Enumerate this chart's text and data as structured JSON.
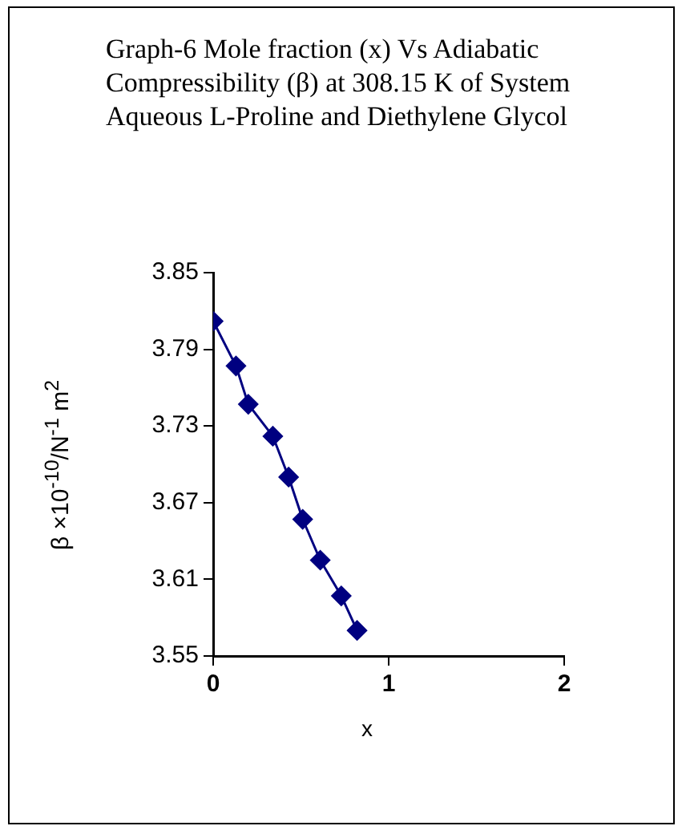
{
  "chart_data": {
    "type": "line",
    "title": "Graph-6 Mole fraction (x) Vs Adiabatic Compressibility (β) at 308.15 K of System Aqueous L-Proline and Diethylene Glycol",
    "xlabel": "x",
    "ylabel": "β ×10$^{-10}$/N$^{-1}$ m$^{2}$",
    "x": [
      0,
      0.13,
      0.2,
      0.34,
      0.43,
      0.51,
      0.61,
      0.73,
      0.82
    ],
    "series": [
      {
        "color": "#000080",
        "values": [
          3.812,
          3.777,
          3.747,
          3.722,
          3.69,
          3.657,
          3.625,
          3.597,
          3.57
        ]
      }
    ],
    "xlim": [
      0,
      2
    ],
    "xticks": [
      0,
      1,
      2
    ],
    "ylim": [
      3.55,
      3.85
    ],
    "yticks": [
      3.55,
      3.61,
      3.67,
      3.73,
      3.79,
      3.85
    ],
    "grid": false,
    "legend": false,
    "marker": "diamond",
    "line_style": "solid"
  }
}
